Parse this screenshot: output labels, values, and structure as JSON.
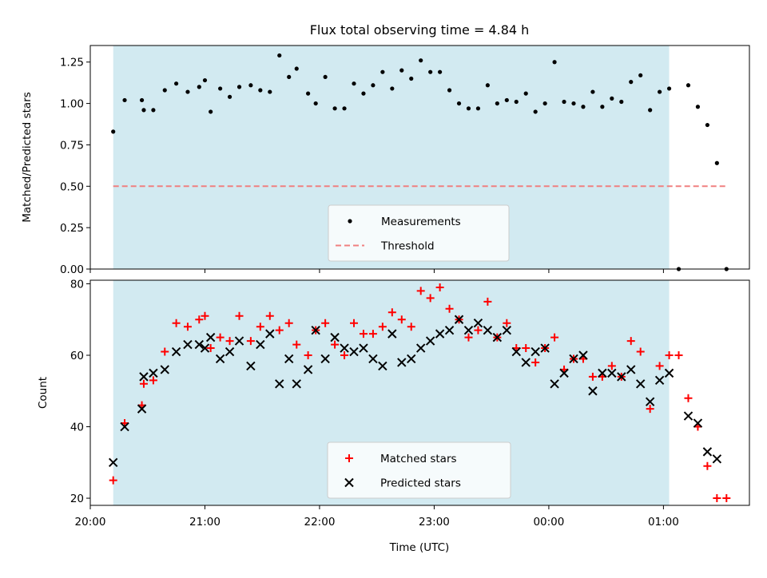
{
  "figure": {
    "title": "Flux total observing time = 4.84 h",
    "xlabel": "Time (UTC)"
  },
  "chart_data": [
    {
      "type": "scatter",
      "ylabel": "Matched/Predicted stars",
      "xlim": [
        "20:00",
        "01:45"
      ],
      "ylim": [
        0,
        1.35
      ],
      "yticks": [
        0.0,
        0.25,
        0.5,
        0.75,
        1.0,
        1.25
      ],
      "ytick_labels": [
        "0.00",
        "0.25",
        "0.50",
        "0.75",
        "1.00",
        "1.25"
      ],
      "shaded_interval": [
        "20:12",
        "01:03"
      ],
      "shade_color": "#add8e6",
      "legend": "lower center",
      "series": [
        {
          "name": "Measurements",
          "color": "#000000",
          "marker": "dot",
          "x": [
            "20:12",
            "20:18",
            "20:27",
            "20:28",
            "20:33",
            "20:39",
            "20:45",
            "20:51",
            "20:57",
            "21:00",
            "21:03",
            "21:08",
            "21:13",
            "21:18",
            "21:24",
            "21:29",
            "21:34",
            "21:39",
            "21:44",
            "21:48",
            "21:54",
            "21:58",
            "22:03",
            "22:08",
            "22:13",
            "22:18",
            "22:23",
            "22:28",
            "22:33",
            "22:38",
            "22:43",
            "22:48",
            "22:53",
            "22:58",
            "23:03",
            "23:08",
            "23:13",
            "23:18",
            "23:23",
            "23:28",
            "23:33",
            "23:38",
            "23:43",
            "23:48",
            "23:53",
            "23:58",
            "00:03",
            "00:08",
            "00:13",
            "00:18",
            "00:23",
            "00:28",
            "00:33",
            "00:38",
            "00:43",
            "00:48",
            "00:53",
            "00:58",
            "01:03",
            "01:08",
            "01:13",
            "01:18",
            "01:23",
            "01:28",
            "01:33"
          ],
          "y": [
            0.83,
            1.02,
            1.02,
            0.96,
            0.96,
            1.08,
            1.12,
            1.07,
            1.1,
            1.14,
            0.95,
            1.09,
            1.04,
            1.1,
            1.11,
            1.08,
            1.07,
            1.29,
            1.16,
            1.21,
            1.06,
            1.0,
            1.16,
            0.97,
            0.97,
            1.12,
            1.06,
            1.11,
            1.19,
            1.09,
            1.2,
            1.15,
            1.26,
            1.19,
            1.19,
            1.08,
            1.0,
            0.97,
            0.97,
            1.11,
            1.0,
            1.02,
            1.01,
            1.06,
            0.95,
            1.0,
            1.25,
            1.01,
            1.0,
            0.98,
            1.07,
            0.98,
            1.03,
            1.01,
            1.13,
            1.17,
            0.96,
            1.07,
            1.09,
            0.0,
            1.11,
            0.98,
            0.87,
            0.64,
            0.0
          ]
        },
        {
          "name": "Threshold",
          "color": "#f08080",
          "style": "dashed",
          "x": [
            "20:12",
            "01:33"
          ],
          "y": [
            0.5,
            0.5
          ]
        }
      ]
    },
    {
      "type": "scatter",
      "ylabel": "Count",
      "xlim": [
        "20:00",
        "01:45"
      ],
      "ylim": [
        18,
        81
      ],
      "yticks": [
        20,
        40,
        60,
        80
      ],
      "ytick_labels": [
        "20",
        "40",
        "60",
        "80"
      ],
      "xticks": [
        "20:00",
        "21:00",
        "22:00",
        "23:00",
        "00:00",
        "01:00"
      ],
      "shaded_interval": [
        "20:12",
        "01:03"
      ],
      "shade_color": "#add8e6",
      "legend": "lower center",
      "series": [
        {
          "name": "Matched stars",
          "color": "#ff0000",
          "marker": "plus",
          "x": [
            "20:12",
            "20:18",
            "20:27",
            "20:28",
            "20:33",
            "20:39",
            "20:45",
            "20:51",
            "20:57",
            "21:00",
            "21:03",
            "21:08",
            "21:13",
            "21:18",
            "21:24",
            "21:29",
            "21:34",
            "21:39",
            "21:44",
            "21:48",
            "21:54",
            "21:58",
            "22:03",
            "22:08",
            "22:13",
            "22:18",
            "22:23",
            "22:28",
            "22:33",
            "22:38",
            "22:43",
            "22:48",
            "22:53",
            "22:58",
            "23:03",
            "23:08",
            "23:13",
            "23:18",
            "23:23",
            "23:28",
            "23:33",
            "23:38",
            "23:43",
            "23:48",
            "23:53",
            "23:58",
            "00:03",
            "00:08",
            "00:13",
            "00:18",
            "00:23",
            "00:28",
            "00:33",
            "00:38",
            "00:43",
            "00:48",
            "00:53",
            "00:58",
            "01:03",
            "01:08",
            "01:13",
            "01:18",
            "01:23",
            "01:28",
            "01:33"
          ],
          "y": [
            25,
            41,
            46,
            52,
            53,
            61,
            69,
            68,
            70,
            71,
            62,
            65,
            64,
            71,
            64,
            68,
            71,
            67,
            69,
            63,
            60,
            67,
            69,
            63,
            60,
            69,
            66,
            66,
            68,
            72,
            70,
            68,
            78,
            76,
            79,
            73,
            70,
            65,
            67,
            75,
            65,
            69,
            62,
            62,
            58,
            62,
            65,
            56,
            59,
            59,
            54,
            54,
            57,
            54,
            64,
            61,
            45,
            57,
            60,
            60,
            48,
            40,
            29,
            20,
            20
          ]
        },
        {
          "name": "Predicted stars",
          "color": "#000000",
          "marker": "x",
          "x": [
            "20:12",
            "20:18",
            "20:27",
            "20:28",
            "20:33",
            "20:39",
            "20:45",
            "20:51",
            "20:57",
            "21:00",
            "21:03",
            "21:08",
            "21:13",
            "21:18",
            "21:24",
            "21:29",
            "21:34",
            "21:39",
            "21:44",
            "21:48",
            "21:54",
            "21:58",
            "22:03",
            "22:08",
            "22:13",
            "22:18",
            "22:23",
            "22:28",
            "22:33",
            "22:38",
            "22:43",
            "22:48",
            "22:53",
            "22:58",
            "23:03",
            "23:08",
            "23:13",
            "23:18",
            "23:23",
            "23:28",
            "23:33",
            "23:38",
            "23:43",
            "23:48",
            "23:53",
            "23:58",
            "00:03",
            "00:08",
            "00:13",
            "00:18",
            "00:23",
            "00:28",
            "00:33",
            "00:38",
            "00:43",
            "00:48",
            "00:53",
            "00:58",
            "01:03",
            "01:13",
            "01:18",
            "01:23",
            "01:28"
          ],
          "y": [
            30,
            40,
            45,
            54,
            55,
            56,
            61,
            63,
            63,
            62,
            65,
            59,
            61,
            64,
            57,
            63,
            66,
            52,
            59,
            52,
            56,
            67,
            59,
            65,
            62,
            61,
            62,
            59,
            57,
            66,
            58,
            59,
            62,
            64,
            66,
            67,
            70,
            67,
            69,
            67,
            65,
            67,
            61,
            58,
            61,
            62,
            52,
            55,
            59,
            60,
            50,
            55,
            55,
            54,
            56,
            52,
            47,
            53,
            55,
            43,
            41,
            33,
            31
          ]
        }
      ]
    }
  ]
}
